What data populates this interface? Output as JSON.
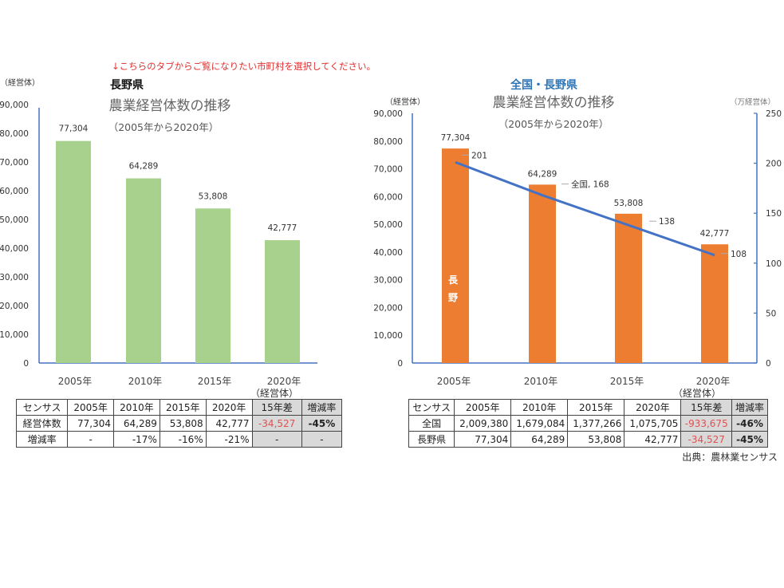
{
  "note": "↓こちらのタブからご覧になりたい市町村を選択してください。",
  "colors": {
    "note": "#e03030",
    "green_bar": "#a9d18e",
    "orange_bar": "#ed7d31",
    "line": "#4472c4",
    "blue_title": "#2e75b6",
    "axis": "#4472c4",
    "diff_red": "#e05050",
    "gray_cell": "#d9d9d9"
  },
  "chart_data": [
    {
      "type": "bar",
      "region_label": "長野県",
      "title": "農業経営体数の推移",
      "subtitle": "（2005年から2020年）",
      "ylabel": "（経営体）",
      "categories": [
        "2005年",
        "2010年",
        "2015年",
        "2020年"
      ],
      "values": [
        77304,
        64289,
        53808,
        42777
      ],
      "data_labels": [
        "77,304",
        "64,289",
        "53,808",
        "42,777"
      ],
      "ylim": [
        0,
        90000
      ],
      "yticks": [
        "0",
        "10,000",
        "20,000",
        "30,000",
        "40,000",
        "50,000",
        "60,000",
        "70,000",
        "80,000",
        "90,000"
      ],
      "grid": false
    },
    {
      "type": "bar+line",
      "region_label": "全国・長野県",
      "title": "農業経営体数の推移",
      "subtitle": "（2005年から2020年）",
      "ylabel": "（経営体）",
      "y2label": "（万経営体）",
      "categories": [
        "2005年",
        "2010年",
        "2015年",
        "2020年"
      ],
      "series": [
        {
          "name": "長野",
          "axis": "left",
          "type": "bar",
          "values": [
            77304,
            64289,
            53808,
            42777
          ],
          "data_labels": [
            "77,304",
            "64,289",
            "53,808",
            "42,777"
          ]
        },
        {
          "name": "全国",
          "axis": "right",
          "type": "line",
          "values": [
            201,
            168,
            138,
            108
          ],
          "data_labels": [
            "201",
            "全国, 168",
            "138",
            "108"
          ]
        }
      ],
      "bar_inner_label": [
        "長",
        "野"
      ],
      "ylim": [
        0,
        90000
      ],
      "y2lim": [
        0,
        250
      ],
      "yticks": [
        "0",
        "10,000",
        "20,000",
        "30,000",
        "40,000",
        "50,000",
        "60,000",
        "70,000",
        "80,000",
        "90,000"
      ],
      "y2ticks": [
        "0",
        "50",
        "100",
        "150",
        "200",
        "250"
      ],
      "grid": false
    }
  ],
  "table_left": {
    "unit": "（経営体）",
    "header": [
      "センサス",
      "2005年",
      "2010年",
      "2015年",
      "2020年",
      "15年差",
      "増減率"
    ],
    "rows": [
      [
        "経営体数",
        "77,304",
        "64,289",
        "53,808",
        "42,777",
        "-34,527",
        "-45%"
      ],
      [
        "増減率",
        "-",
        "-17%",
        "-16%",
        "-21%",
        "-",
        "-"
      ]
    ]
  },
  "table_right": {
    "unit": "（経営体）",
    "header": [
      "センサス",
      "2005年",
      "2010年",
      "2015年",
      "2020年",
      "15年差",
      "増減率"
    ],
    "rows": [
      [
        "全国",
        "2,009,380",
        "1,679,084",
        "1,377,266",
        "1,075,705",
        "-933,675",
        "-46%"
      ],
      [
        "長野県",
        "77,304",
        "64,289",
        "53,808",
        "42,777",
        "-34,527",
        "-45%"
      ]
    ]
  },
  "source": "出典：農林業センサス"
}
